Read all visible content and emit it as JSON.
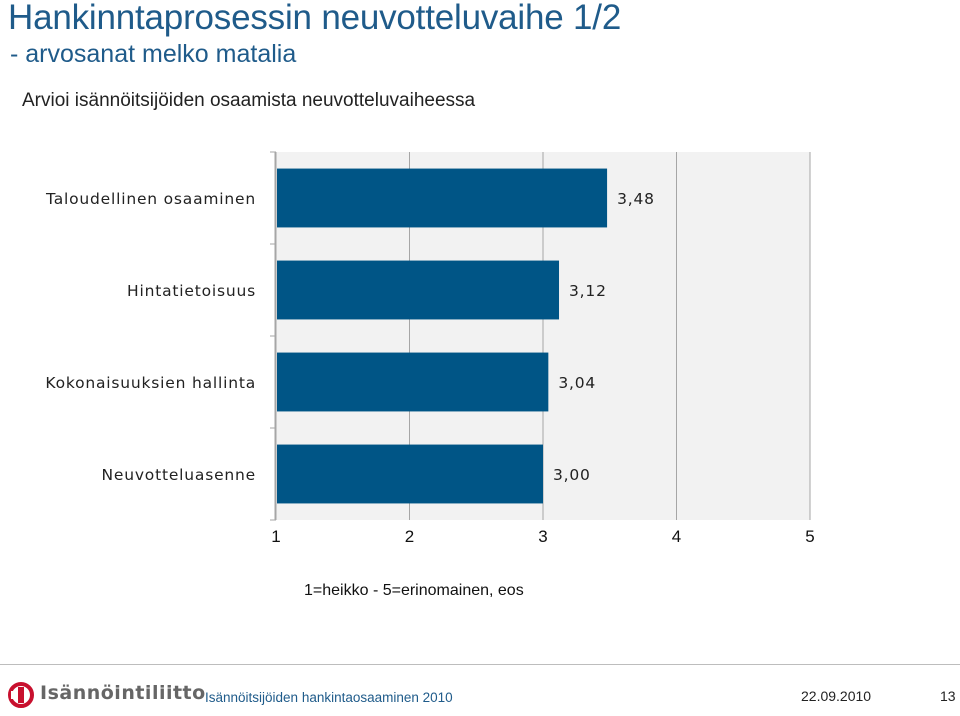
{
  "slide": {
    "title": "Hankinntaprosessin neuvotteluvaihe 1/2",
    "subtitle": "- arvosanat melko matalia",
    "question": "Arvioi  isännöitsijöiden osaamista  neuvotteluvaiheessa",
    "scale_note": "1=heikko - 5=erinomainen, eos"
  },
  "footer": {
    "logo_text": "Isännöintiliitto",
    "presentation": "Isännöitsijöiden hankintaosaaminen 2010",
    "date": "22.09.2010",
    "page": "13"
  },
  "colors": {
    "bar": "#005586",
    "plot_background": "#f2f2f2",
    "title": "#1f5b8a",
    "logo_red": "#c8102e"
  },
  "chart_data": {
    "type": "bar",
    "orientation": "horizontal",
    "categories": [
      "Taloudellinen osaaminen",
      "Hintatietoisuus",
      "Kokonaisuuksien hallinta",
      "Neuvotteluasenne"
    ],
    "values": [
      3.48,
      3.12,
      3.04,
      3.0
    ],
    "value_labels": [
      "3,48",
      "3,12",
      "3,04",
      "3,00"
    ],
    "xlim": [
      1,
      5
    ],
    "x_ticks": [
      "1",
      "2",
      "3",
      "4",
      "5"
    ],
    "grid": true
  }
}
